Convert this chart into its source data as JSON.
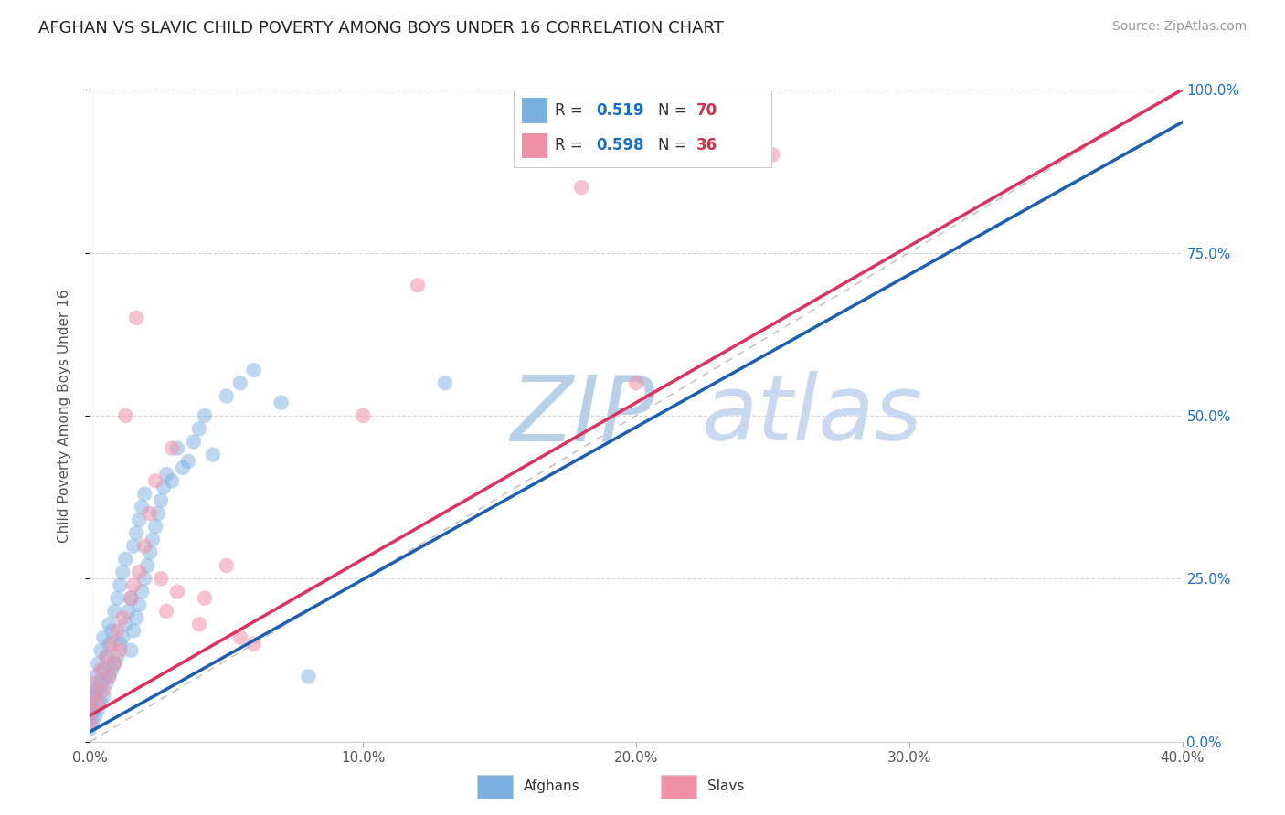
{
  "title": "AFGHAN VS SLAVIC CHILD POVERTY AMONG BOYS UNDER 16 CORRELATION CHART",
  "source": "Source: ZipAtlas.com",
  "ylabel": "Child Poverty Among Boys Under 16",
  "xlim": [
    0.0,
    0.4
  ],
  "ylim": [
    0.0,
    1.0
  ],
  "xticks": [
    0.0,
    0.1,
    0.2,
    0.3,
    0.4
  ],
  "xtick_labels": [
    "0.0%",
    "10.0%",
    "20.0%",
    "30.0%",
    "40.0%"
  ],
  "yticks": [
    0.0,
    0.25,
    0.5,
    0.75,
    1.0
  ],
  "ytick_labels_right": [
    "0.0%",
    "25.0%",
    "50.0%",
    "75.0%",
    "100.0%"
  ],
  "r_color": "#1a6fc4",
  "n_color": "#d0304a",
  "watermark_zip": "ZIP",
  "watermark_atlas": "atlas",
  "watermark_zip_color": "#b8cfe8",
  "watermark_atlas_color": "#c8d8f0",
  "background_color": "#ffffff",
  "grid_color": "#cccccc",
  "afghans_color": "#7ab0e0",
  "slavs_color": "#f090a8",
  "afghans_line_color": "#1a5fb4",
  "slavs_line_color": "#e03060",
  "ref_line_color": "#a0a0a0",
  "afghans_R": "0.519",
  "afghans_N": "70",
  "slavs_R": "0.598",
  "slavs_N": "36",
  "afghans_line": {
    "x0": 0.0,
    "y0": 0.015,
    "x1": 0.4,
    "y1": 0.95
  },
  "slavs_line": {
    "x0": 0.0,
    "y0": 0.04,
    "x1": 0.4,
    "y1": 1.0
  },
  "ref_line": {
    "x0": 0.0,
    "y0": 0.0,
    "x1": 0.4,
    "y1": 1.0
  },
  "afghans_x": [
    0.0,
    0.0,
    0.0,
    0.001,
    0.001,
    0.001,
    0.002,
    0.002,
    0.002,
    0.003,
    0.003,
    0.003,
    0.004,
    0.004,
    0.004,
    0.005,
    0.005,
    0.005,
    0.006,
    0.006,
    0.007,
    0.007,
    0.007,
    0.008,
    0.008,
    0.009,
    0.009,
    0.01,
    0.01,
    0.011,
    0.011,
    0.012,
    0.012,
    0.013,
    0.013,
    0.014,
    0.015,
    0.015,
    0.016,
    0.016,
    0.017,
    0.017,
    0.018,
    0.018,
    0.019,
    0.019,
    0.02,
    0.02,
    0.021,
    0.022,
    0.023,
    0.024,
    0.025,
    0.026,
    0.027,
    0.028,
    0.03,
    0.032,
    0.034,
    0.036,
    0.038,
    0.04,
    0.042,
    0.045,
    0.05,
    0.055,
    0.06,
    0.07,
    0.08,
    0.13
  ],
  "afghans_y": [
    0.02,
    0.04,
    0.06,
    0.03,
    0.05,
    0.08,
    0.04,
    0.07,
    0.1,
    0.05,
    0.08,
    0.12,
    0.06,
    0.09,
    0.14,
    0.07,
    0.11,
    0.16,
    0.09,
    0.13,
    0.1,
    0.15,
    0.18,
    0.11,
    0.17,
    0.12,
    0.2,
    0.13,
    0.22,
    0.15,
    0.24,
    0.16,
    0.26,
    0.18,
    0.28,
    0.2,
    0.14,
    0.22,
    0.17,
    0.3,
    0.19,
    0.32,
    0.21,
    0.34,
    0.23,
    0.36,
    0.25,
    0.38,
    0.27,
    0.29,
    0.31,
    0.33,
    0.35,
    0.37,
    0.39,
    0.41,
    0.4,
    0.45,
    0.42,
    0.43,
    0.46,
    0.48,
    0.5,
    0.44,
    0.53,
    0.55,
    0.57,
    0.52,
    0.1,
    0.55
  ],
  "slavs_x": [
    0.0,
    0.0,
    0.001,
    0.002,
    0.003,
    0.004,
    0.005,
    0.006,
    0.007,
    0.008,
    0.009,
    0.01,
    0.011,
    0.012,
    0.013,
    0.015,
    0.016,
    0.017,
    0.018,
    0.02,
    0.022,
    0.024,
    0.026,
    0.028,
    0.03,
    0.032,
    0.04,
    0.042,
    0.05,
    0.055,
    0.06,
    0.1,
    0.12,
    0.18,
    0.2,
    0.25
  ],
  "slavs_y": [
    0.03,
    0.05,
    0.07,
    0.09,
    0.06,
    0.11,
    0.08,
    0.13,
    0.1,
    0.15,
    0.12,
    0.17,
    0.14,
    0.19,
    0.5,
    0.22,
    0.24,
    0.65,
    0.26,
    0.3,
    0.35,
    0.4,
    0.25,
    0.2,
    0.45,
    0.23,
    0.18,
    0.22,
    0.27,
    0.16,
    0.15,
    0.5,
    0.7,
    0.85,
    0.55,
    0.9
  ]
}
